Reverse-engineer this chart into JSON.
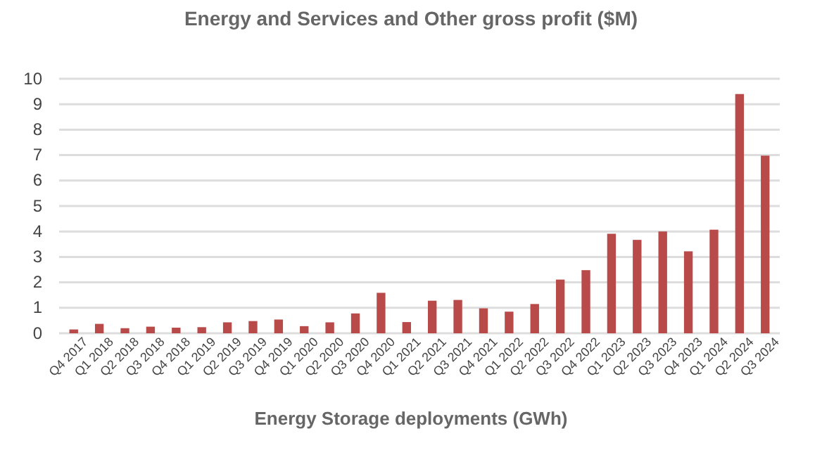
{
  "chart_data": {
    "type": "bar",
    "title": "Energy and Services and Other gross profit ($M)",
    "xlabel": "Energy Storage deployments (GWh)",
    "categories": [
      "Q4 2017",
      "Q1 2018",
      "Q2 2018",
      "Q3 2018",
      "Q4 2018",
      "Q1 2019",
      "Q2 2019",
      "Q3 2019",
      "Q4 2019",
      "Q1 2020",
      "Q2 2020",
      "Q3 2020",
      "Q4 2020",
      "Q1 2021",
      "Q2 2021",
      "Q3 2021",
      "Q4 2021",
      "Q1 2022",
      "Q2 2022",
      "Q3 2022",
      "Q4 2022",
      "Q1 2023",
      "Q2 2023",
      "Q3 2023",
      "Q4 2023",
      "Q1 2024",
      "Q2 2024",
      "Q3 2024"
    ],
    "values": [
      0.15,
      0.37,
      0.2,
      0.26,
      0.22,
      0.24,
      0.43,
      0.48,
      0.54,
      0.28,
      0.43,
      0.78,
      1.59,
      0.44,
      1.28,
      1.31,
      0.98,
      0.85,
      1.15,
      2.11,
      2.48,
      3.91,
      3.67,
      4.0,
      3.22,
      4.07,
      9.4,
      6.98
    ],
    "color": "#b94a4a",
    "ylim": [
      0,
      10
    ],
    "yticks": [
      0,
      1,
      2,
      3,
      4,
      5,
      6,
      7,
      8,
      9,
      10
    ],
    "grid": "y"
  }
}
